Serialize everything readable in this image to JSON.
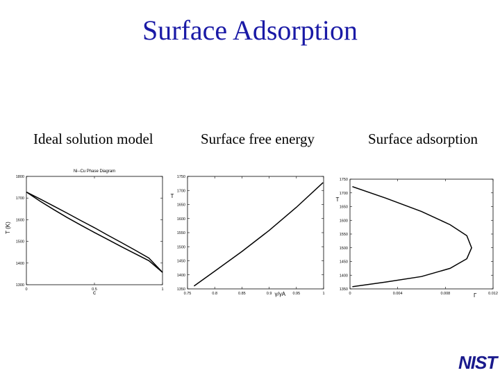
{
  "slide": {
    "title": "Surface Adsorption"
  },
  "captions": [
    "Ideal solution model",
    "Surface free energy",
    "Surface adsorption"
  ],
  "logo_text": "NIST",
  "chart_data": [
    {
      "type": "line",
      "title": "Ni--Cu Phase Diagram",
      "xlabel": "c",
      "ylabel": "T (K)",
      "xlim": [
        0,
        1
      ],
      "ylim": [
        1300,
        1800
      ],
      "xticks": [
        0,
        0.5,
        1
      ],
      "yticks": [
        1300,
        1400,
        1500,
        1600,
        1700,
        1800
      ],
      "xtick_labels": [
        "0",
        "0.5",
        "1"
      ],
      "ytick_labels": [
        "1300",
        "1400",
        "1500",
        "1600",
        "1700",
        "1800"
      ],
      "series": [
        {
          "x": [
            0,
            0.1,
            0.2,
            0.3,
            0.4,
            0.5,
            0.6,
            0.7,
            0.8,
            0.9,
            1.0
          ],
          "y": [
            1728,
            1696,
            1663,
            1630,
            1596,
            1563,
            1528,
            1494,
            1459,
            1423,
            1357
          ]
        },
        {
          "x": [
            0,
            0.1,
            0.2,
            0.3,
            0.4,
            0.5,
            0.6,
            0.7,
            0.8,
            0.9,
            1.0
          ],
          "y": [
            1728,
            1686,
            1647,
            1610,
            1575,
            1541,
            1508,
            1475,
            1443,
            1411,
            1357
          ]
        }
      ],
      "grid": false
    },
    {
      "type": "line",
      "xlabel": "γ/γA",
      "ylabel": "T",
      "xlim": [
        0.75,
        1.0
      ],
      "ylim": [
        1350,
        1750
      ],
      "xticks": [
        0.75,
        0.8,
        0.85,
        0.9,
        0.95,
        1.0
      ],
      "yticks": [
        1350,
        1400,
        1450,
        1500,
        1550,
        1600,
        1650,
        1700,
        1750
      ],
      "xtick_labels": [
        "0.75",
        "0.8",
        "0.85",
        "0.9",
        "0.95",
        "1"
      ],
      "ytick_labels": [
        "1350",
        "1400",
        "1450",
        "1500",
        "1550",
        "1600",
        "1650",
        "1700",
        "1750"
      ],
      "series": [
        {
          "x": [
            0.762,
            0.8,
            0.85,
            0.9,
            0.95,
            0.999
          ],
          "y": [
            1360,
            1413,
            1483,
            1558,
            1640,
            1728
          ]
        }
      ],
      "grid": false
    },
    {
      "type": "line",
      "xlabel": "Γ",
      "ylabel": "T",
      "xlim": [
        0,
        0.012
      ],
      "ylim": [
        1350,
        1750
      ],
      "xticks": [
        0,
        0.004,
        0.008,
        0.012
      ],
      "yticks": [
        1350,
        1400,
        1450,
        1500,
        1550,
        1600,
        1650,
        1700,
        1750
      ],
      "xtick_labels": [
        "0",
        "0.004",
        "0.008",
        "0.012"
      ],
      "ytick_labels": [
        "1350",
        "1400",
        "1450",
        "1500",
        "1550",
        "1600",
        "1650",
        "1700",
        "1750"
      ],
      "series": [
        {
          "x": [
            0.0002,
            0.003,
            0.006,
            0.0084,
            0.0098,
            0.0102,
            0.0098,
            0.0084,
            0.006,
            0.003,
            0.0002
          ],
          "y": [
            1723,
            1681,
            1632,
            1584,
            1544,
            1500,
            1460,
            1425,
            1395,
            1375,
            1358
          ]
        }
      ],
      "grid": false
    }
  ]
}
